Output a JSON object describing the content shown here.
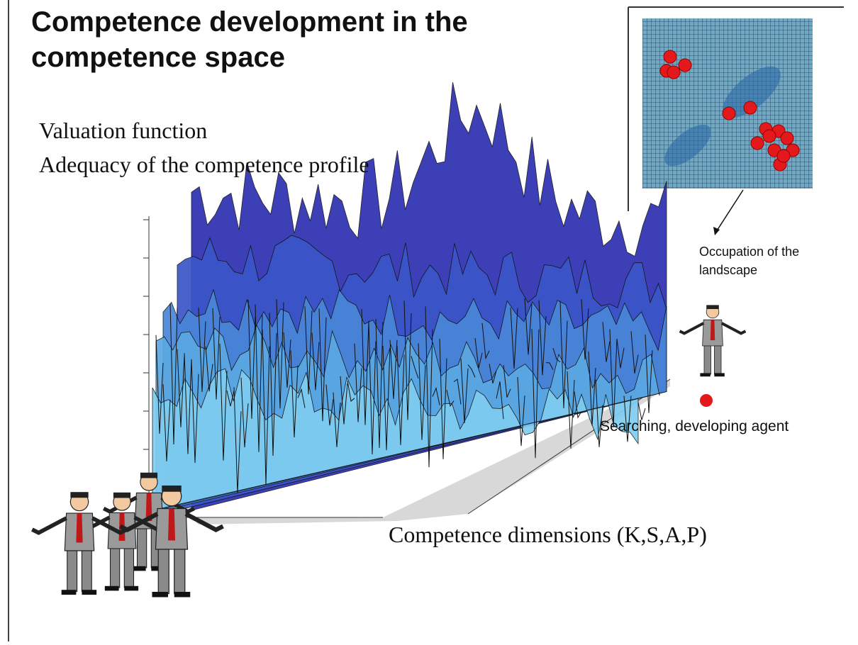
{
  "title": "Competence development in the competence space",
  "axis_labels": {
    "valuation": "Valuation function",
    "adequacy": "Adequacy of the competence profile",
    "dimensions": "Competence dimensions (K,S,A,P)"
  },
  "inset_label": "Occupation of the landscape",
  "agent_label": "Searching, developing agent"
}
